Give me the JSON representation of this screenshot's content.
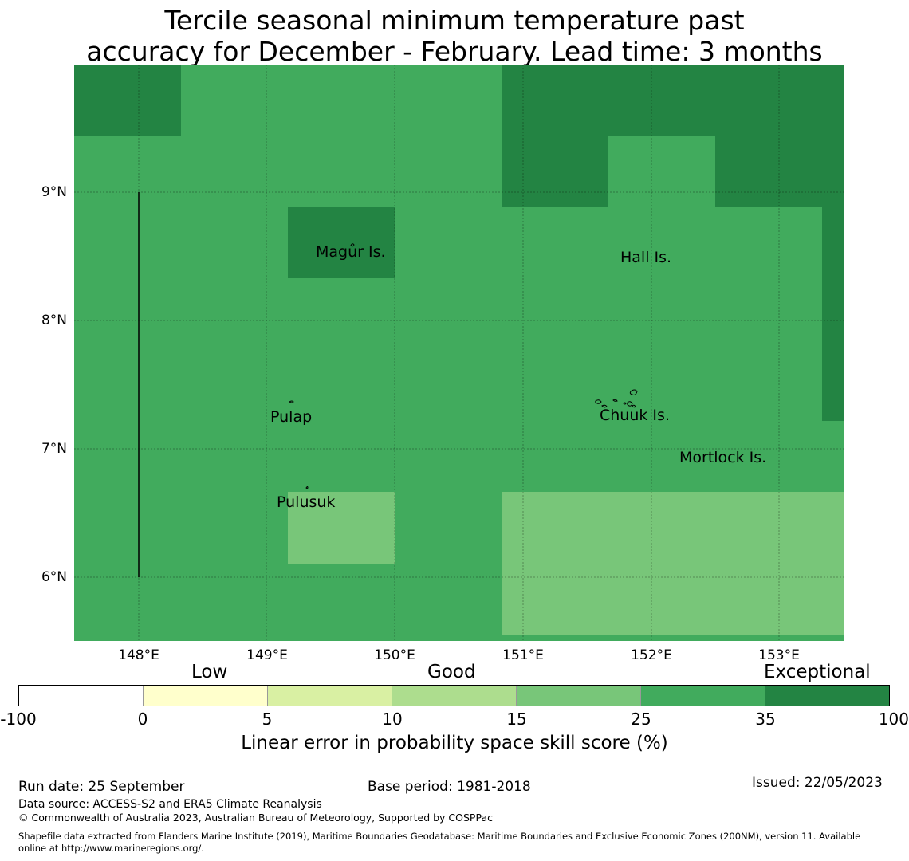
{
  "title_line1": "Tercile seasonal minimum temperature past",
  "title_line2": "accuracy for December - February. Lead time: 3 months",
  "colors": {
    "c25_35": "#41ab5d",
    "c35_100": "#238443",
    "c15_25": "#78c679",
    "c10_15": "#addd8e",
    "c5_10": "#d9f0a3",
    "c0_5": "#ffffcc",
    "cneg": "#ffffff"
  },
  "map": {
    "lon_ticks": [
      "148°E",
      "149°E",
      "150°E",
      "151°E",
      "152°E",
      "153°E"
    ],
    "lat_ticks": [
      "9°N",
      "8°N",
      "7°N",
      "6°N"
    ],
    "places": {
      "magur": "Magur Is.",
      "hall": "Hall Is.",
      "pulap": "Pulap",
      "chuuk": "Chuuk Is.",
      "mortlock": "Mortlock Is.",
      "pulusuk": "Pulusuk"
    }
  },
  "colorbar": {
    "ticks": [
      "-100",
      "0",
      "5",
      "10",
      "15",
      "25",
      "35",
      "100"
    ],
    "categories": [
      "Low",
      "Good",
      "Exceptional"
    ],
    "label": "Linear error in probability space skill score (%)"
  },
  "footer": {
    "run_date": "Run date: 25 September",
    "base_period": "Base period: 1981-2018",
    "issued": "Issued: 22/05/2023",
    "data_source": "Data source: ACCESS-S2 and ERA5 Climate Reanalysis",
    "copyright": "© Commonwealth of Australia 2023, Australian Bureau of Meteorology, Supported by COSPPac",
    "shapefile_line1": "Shapefile data extracted from Flanders Marine Institute (2019), Maritime Boundaries Geodatabase: Maritime Boundaries and Exclusive Economic Zones (200NM), version 11. Available",
    "shapefile_line2": "online at http://www.marineregions.org/."
  }
}
